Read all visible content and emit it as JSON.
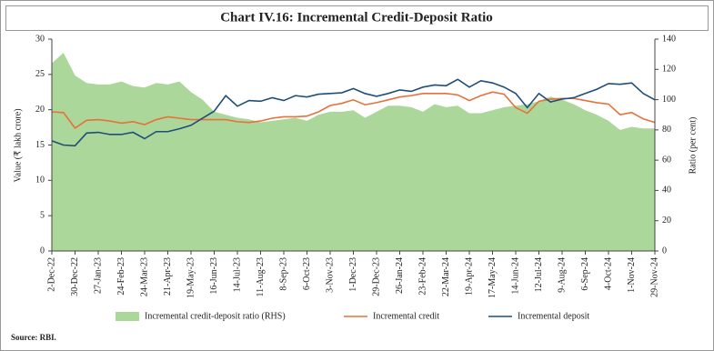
{
  "chart_data": {
    "type": "combo",
    "title": "Chart IV.16: Incremental Credit-Deposit Ratio",
    "y_label": "Value (₹ lakh crore)",
    "y2_label": "Ratio (per cent)",
    "source": "Source: RBI.",
    "categories": [
      "2-Dec-22",
      null,
      "30-Dec-22",
      null,
      "27-Jan-23",
      null,
      "24-Feb-23",
      null,
      "24-Mar-23",
      null,
      "21-Apr-23",
      null,
      "19-May-23",
      null,
      "16-Jun-23",
      null,
      "14-Jul-23",
      null,
      "11-Aug-23",
      null,
      "8-Sep-23",
      null,
      "6-Oct-23",
      null,
      "3-Nov-23",
      null,
      "1-Dec-23",
      null,
      "29-Dec-23",
      null,
      "26-Jan-24",
      null,
      "23-Feb-24",
      null,
      "22-Mar-24",
      null,
      "19-Apr-24",
      null,
      "17-May-24",
      null,
      "14-Jun-24",
      null,
      "12-Jul-24",
      null,
      "9-Aug-24",
      null,
      "6-Sep-24",
      null,
      "4-Oct-24",
      null,
      "1-Nov-24",
      null,
      "29-Nov-24"
    ],
    "series": [
      {
        "name": "Incremental credit-deposit ratio (RHS)",
        "type": "area",
        "axis": "y2",
        "color": "#acd79a",
        "values": [
          124,
          131,
          116,
          111,
          110,
          110,
          112,
          109,
          108,
          111,
          110,
          112,
          105,
          100,
          92,
          90,
          88,
          87,
          85,
          86,
          87,
          88,
          86,
          90,
          92,
          92,
          93,
          88,
          92,
          96,
          96,
          95,
          92,
          97,
          95,
          96,
          91,
          91,
          93,
          95,
          96,
          97,
          99,
          102,
          100,
          97,
          93,
          90,
          86,
          80,
          82,
          81,
          81
        ]
      },
      {
        "name": "Incremental credit",
        "type": "line",
        "color": "#e8703a",
        "values": [
          19.7,
          19.6,
          17.4,
          18.5,
          18.6,
          18.4,
          18.1,
          18.3,
          17.9,
          18.6,
          19.0,
          18.8,
          18.6,
          18.6,
          18.6,
          18.6,
          18.3,
          18.2,
          18.4,
          18.8,
          19.0,
          19.0,
          19.1,
          19.7,
          20.6,
          20.9,
          21.4,
          20.7,
          21.0,
          21.4,
          21.8,
          22.0,
          22.3,
          22.3,
          22.3,
          22.1,
          21.3,
          22.0,
          22.5,
          22.2,
          20.3,
          19.5,
          21.2,
          21.5,
          21.6,
          21.6,
          21.3,
          21.0,
          20.8,
          19.3,
          19.6,
          18.7,
          18.2
        ]
      },
      {
        "name": "Incremental deposit",
        "type": "line",
        "color": "#1f4e79",
        "values": [
          15.6,
          15.0,
          14.9,
          16.7,
          16.8,
          16.5,
          16.5,
          16.8,
          15.9,
          16.9,
          16.9,
          17.3,
          17.8,
          18.8,
          19.8,
          22.0,
          20.5,
          21.3,
          21.2,
          21.7,
          21.3,
          22.0,
          21.8,
          22.2,
          22.3,
          22.4,
          23.0,
          22.3,
          21.9,
          22.3,
          22.8,
          22.6,
          23.2,
          23.5,
          23.4,
          24.3,
          23.2,
          24.1,
          23.8,
          23.2,
          22.3,
          20.3,
          22.3,
          21.1,
          21.5,
          21.7,
          22.3,
          22.9,
          23.7,
          23.6,
          23.8,
          22.3,
          21.4
        ]
      }
    ],
    "ylim": [
      0,
      30
    ],
    "yticks": [
      0,
      5,
      10,
      15,
      20,
      25,
      30
    ],
    "y2lim": [
      0,
      140
    ],
    "y2ticks": [
      0,
      20,
      40,
      60,
      80,
      100,
      120,
      140
    ]
  }
}
